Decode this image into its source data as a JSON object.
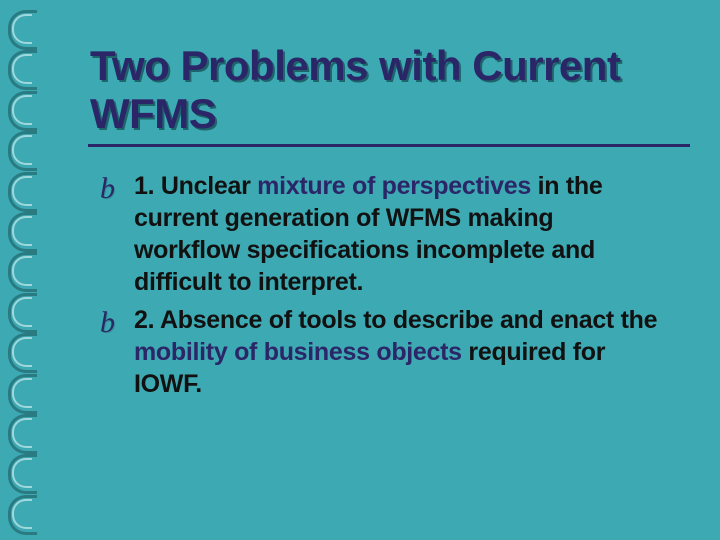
{
  "title": "Two Problems with Current WFMS",
  "bullet_glyph": "b",
  "items": [
    {
      "prefix": "1. Unclear ",
      "accent1": "mixture of perspectives",
      "mid": " in the current generation of WFMS making workflow specifications incomplete and difficult to interpret.",
      "accent2": "",
      "suffix": ""
    },
    {
      "prefix": "2. Absence of tools to describe and enact the ",
      "accent1": "mobility of business objects",
      "mid": " required for IOWF.",
      "accent2": "",
      "suffix": ""
    }
  ],
  "colors": {
    "background": "#3da9b2",
    "title_color": "#2b2668",
    "accent_color": "#2b2668",
    "text_color": "#111111",
    "ring_dark": "#2a7a82",
    "ring_light": "#9ed8dd"
  },
  "typography": {
    "title_fontsize": 42,
    "title_weight": 800,
    "body_fontsize": 25,
    "body_weight": 800,
    "bullet_fontsize": 30
  },
  "ring_count": 13
}
